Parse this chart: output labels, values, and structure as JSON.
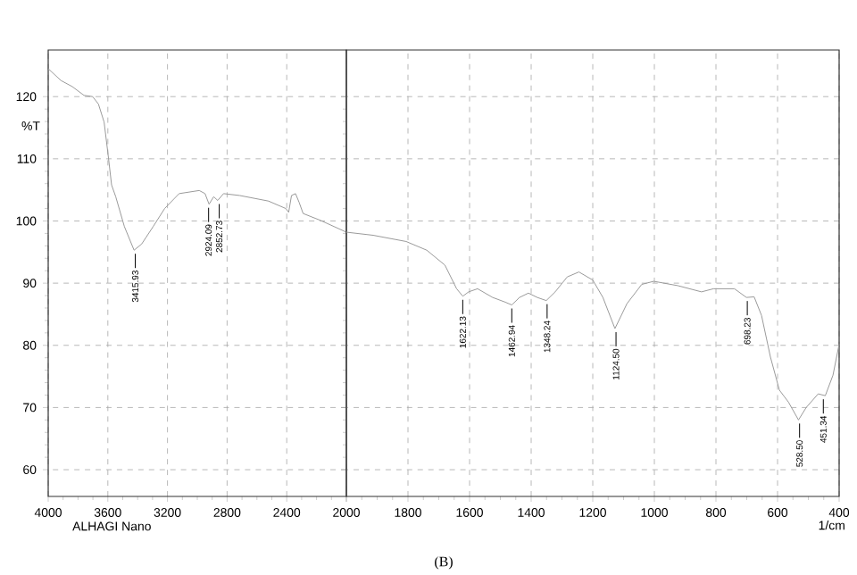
{
  "chart_data": [
    {
      "type": "line",
      "ylabel": "%T",
      "xlim": [
        4000,
        2000
      ],
      "ylim": [
        55.7,
        127.5
      ],
      "xticks": [
        4000,
        3600,
        3200,
        2800,
        2400,
        {
          "value": 2000,
          "label": null
        }
      ],
      "yticks": [
        60,
        70,
        80,
        90,
        100,
        110,
        120
      ],
      "grid": true,
      "series": [
        {
          "color": "#9a9a9a",
          "x": [
            4000,
            3915,
            3838,
            3760,
            3702,
            3663,
            3625,
            3598,
            3575,
            3547,
            3489,
            3424,
            3373,
            3296,
            3219,
            3122,
            2987,
            2948,
            2921,
            2890,
            2863,
            2824,
            2716,
            2522,
            2406,
            2387,
            2368,
            2341,
            2317,
            2290,
            2174,
            2000
          ],
          "values": [
            124.5,
            122.6,
            121.6,
            120.2,
            120,
            118.8,
            115.9,
            110.6,
            105.8,
            103.9,
            99.1,
            95.3,
            96.3,
            99.1,
            102,
            104.4,
            104.9,
            104.4,
            102.7,
            103.9,
            103.3,
            104.4,
            104.1,
            103.2,
            102,
            101.4,
            104.1,
            104.4,
            103,
            101.2,
            100.1,
            98.2
          ]
        }
      ],
      "annotations": [
        {
          "text": "3415.93",
          "x": 3415.93,
          "y": 95.3
        },
        {
          "text": "2924.09",
          "x": 2924.09,
          "y": 102.7
        },
        {
          "text": "2852.73",
          "x": 2852.73,
          "y": 103.3
        },
        "ALHAGI Nano"
      ],
      "tick_labels": true
    },
    {
      "type": "line",
      "xlabel": "1/cm",
      "xlim": [
        2000,
        400
      ],
      "ylim": [
        55.7,
        127.5
      ],
      "xticks": [
        2000,
        1800,
        1600,
        1400,
        1200,
        1000,
        800,
        600,
        400
      ],
      "yticks": [
        60,
        70,
        80,
        90,
        100,
        110,
        120
      ],
      "grid": true,
      "tick_labels": "x",
      "series": [
        {
          "color": "#9a9a9a",
          "x": [
            2000,
            1913,
            1806,
            1739,
            1680,
            1642,
            1622,
            1603,
            1574,
            1525,
            1487,
            1463,
            1438,
            1409,
            1380,
            1351,
            1322,
            1283,
            1245,
            1200,
            1167,
            1128,
            1089,
            1041,
            1002,
            924,
            847,
            808,
            740,
            701,
            676,
            652,
            623,
            594,
            565,
            532,
            507,
            468,
            445,
            420,
            400
          ],
          "values": [
            98.2,
            97.7,
            96.7,
            95.3,
            92.9,
            89.1,
            87.9,
            88.6,
            89.1,
            87.7,
            87,
            86.5,
            87.7,
            88.4,
            87.7,
            87.2,
            88.6,
            91,
            91.8,
            90.5,
            87.7,
            82.7,
            86.7,
            89.8,
            90.3,
            89.6,
            88.6,
            89.1,
            89.1,
            87.7,
            87.8,
            84.8,
            78.1,
            72.8,
            70.9,
            68,
            70,
            72.2,
            71.9,
            75.2,
            80.2
          ]
        }
      ],
      "annotations": [
        {
          "text": "1622.13",
          "x": 1622.13,
          "y": 87.9
        },
        {
          "text": "1462.94",
          "x": 1462.94,
          "y": 86.5
        },
        {
          "text": "1348.24",
          "x": 1348.24,
          "y": 87.2
        },
        {
          "text": "1124.50",
          "x": 1124.5,
          "y": 82.7
        },
        {
          "text": "698.23",
          "x": 698.23,
          "y": 87.7
        },
        {
          "text": "528.50",
          "x": 528.5,
          "y": 68
        },
        {
          "text": "451.34",
          "x": 451.34,
          "y": 71.9
        },
        "(B)"
      ]
    }
  ]
}
